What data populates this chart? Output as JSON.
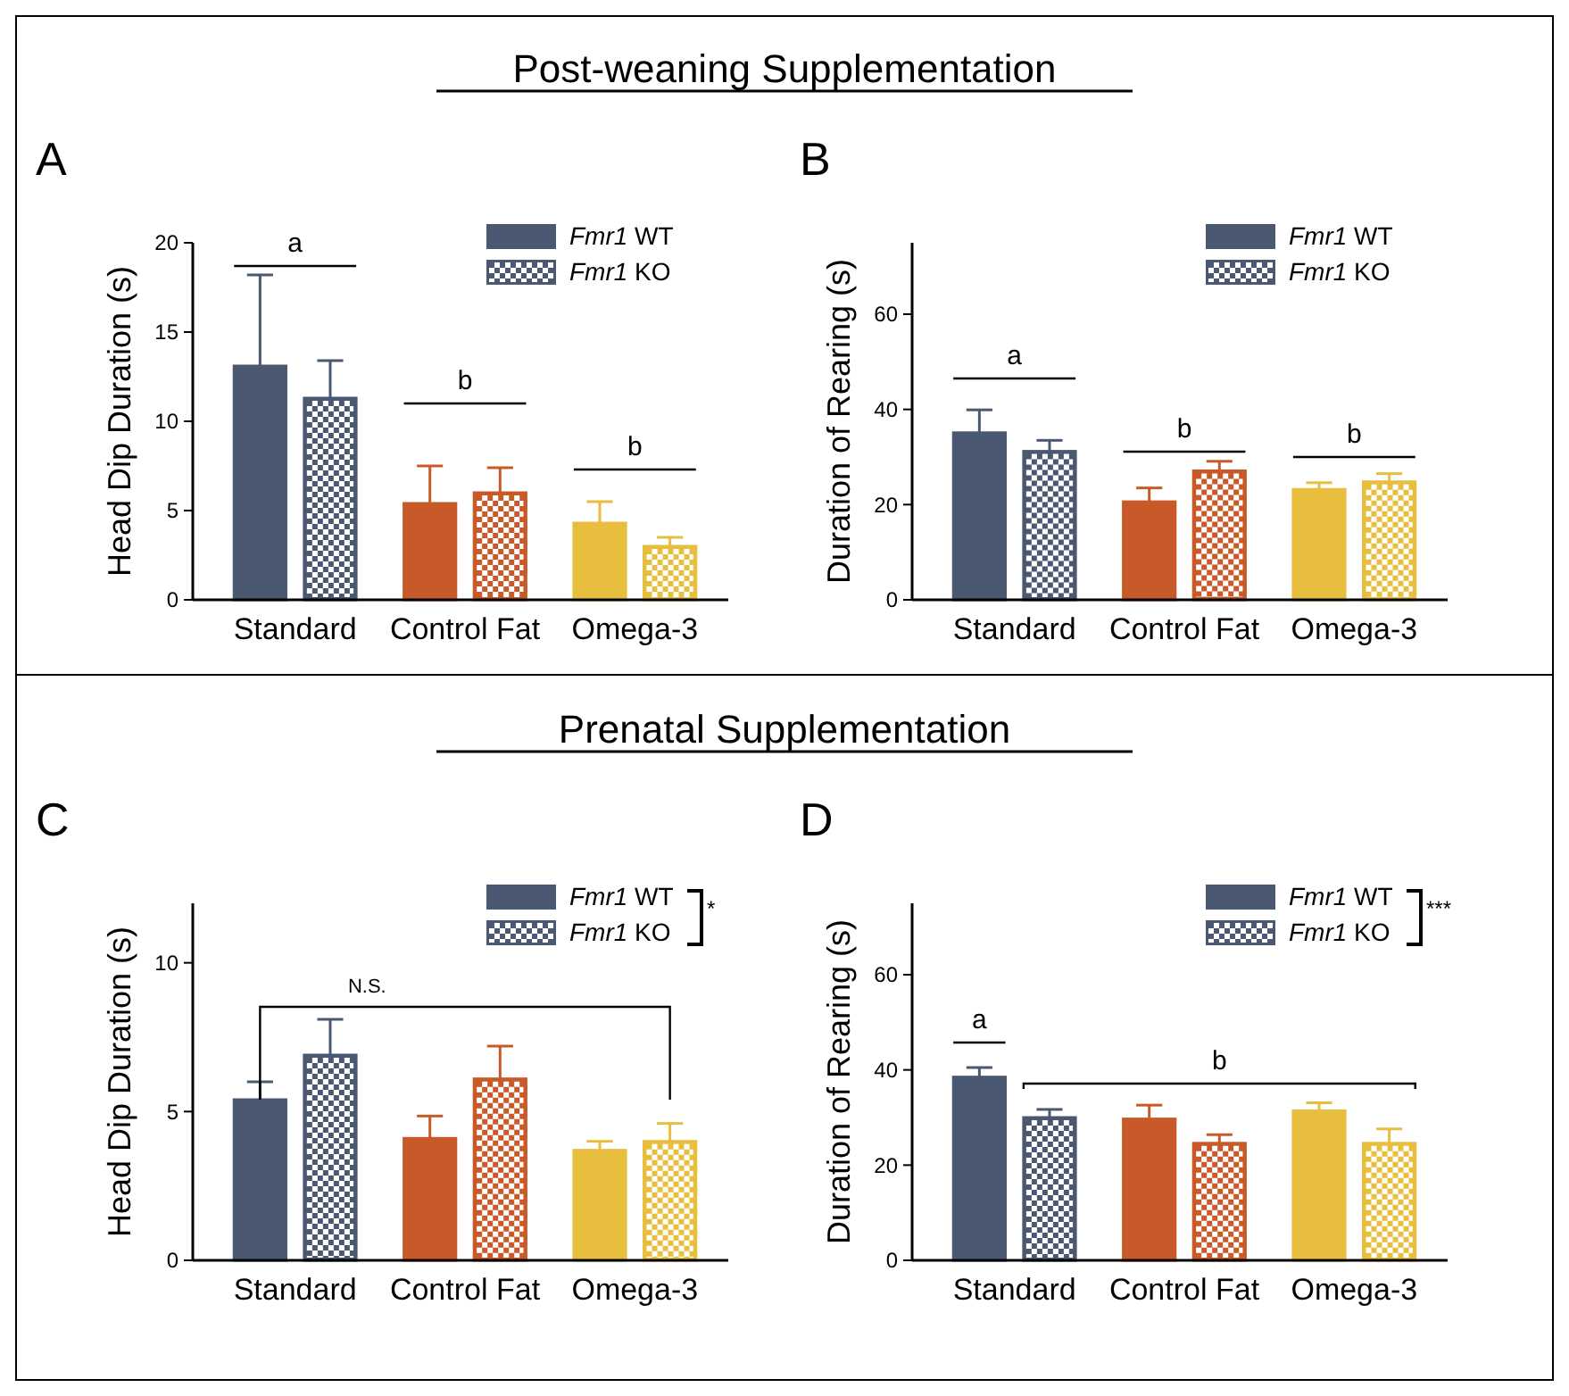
{
  "chart_data": [
    {
      "type": "bar",
      "title": "Post-weaning Supplementation",
      "subtitle": "A",
      "ylabel": "Head Dip Duration (s)",
      "categories": [
        "Standard",
        "Control Fat",
        "Omega-3"
      ],
      "ylim": [
        0,
        20
      ],
      "yticks": [
        0,
        5,
        10,
        15,
        20
      ],
      "legend": "top right",
      "series": [
        {
          "name": "Fmr1 WT",
          "color": "#4a5872",
          "colors": [
            "#4a5872",
            "#c85a2a",
            "#e8be3e"
          ],
          "values": [
            13.1,
            5.4,
            4.3
          ],
          "errors": [
            [
              13.1,
              18.2
            ],
            [
              5.4,
              7.5
            ],
            [
              4.3,
              5.5
            ]
          ]
        },
        {
          "name": "Fmr1 KO",
          "color": "#4a5872",
          "colors": [
            "#4a5872",
            "#c85a2a",
            "#e8be3e"
          ],
          "values": [
            11.3,
            6.0,
            3.0
          ],
          "errors": [
            [
              11.3,
              13.4
            ],
            [
              6.0,
              7.4
            ],
            [
              3.0,
              3.5
            ]
          ]
        }
      ],
      "annotations": [
        "a",
        "b",
        "b"
      ]
    },
    {
      "type": "bar",
      "subtitle": "B",
      "ylabel": "Duration of Rearing (s)",
      "categories": [
        "Standard",
        "Control Fat",
        "Omega-3"
      ],
      "ylim": [
        0,
        75
      ],
      "yticks": [
        0,
        20,
        40,
        60
      ],
      "legend": "top right",
      "series": [
        {
          "name": "Fmr1 WT",
          "color": "#4a5872",
          "colors": [
            "#4a5872",
            "#c85a2a",
            "#e8be3e"
          ],
          "values": [
            35.1,
            20.6,
            23.2
          ],
          "errors": [
            [
              35.1,
              39.9
            ],
            [
              20.6,
              23.5
            ],
            [
              23.2,
              24.6
            ]
          ]
        },
        {
          "name": "Fmr1 KO",
          "color": "#4a5872",
          "colors": [
            "#4a5872",
            "#c85a2a",
            "#e8be3e"
          ],
          "values": [
            31.2,
            27.1,
            24.8
          ],
          "errors": [
            [
              31.2,
              33.5
            ],
            [
              27.1,
              29.1
            ],
            [
              24.8,
              26.5
            ]
          ]
        }
      ],
      "annotations": [
        "a",
        "b",
        "b"
      ]
    },
    {
      "type": "bar",
      "title": "Prenatal Supplementation",
      "subtitle": "C",
      "ylabel": "Head Dip Duration (s)",
      "categories": [
        "Standard",
        "Control Fat",
        "Omega-3"
      ],
      "ylim": [
        0,
        12
      ],
      "yticks": [
        0,
        5,
        10
      ],
      "legend": "top right",
      "series": [
        {
          "name": "Fmr1 WT",
          "color": "#4a5872",
          "colors": [
            "#4a5872",
            "#c85a2a",
            "#e8be3e"
          ],
          "values": [
            5.4,
            4.1,
            3.7
          ],
          "errors": [
            [
              5.4,
              6.0
            ],
            [
              4.1,
              4.85
            ],
            [
              3.7,
              4.0
            ]
          ]
        },
        {
          "name": "Fmr1 KO",
          "color": "#4a5872",
          "colors": [
            "#4a5872",
            "#c85a2a",
            "#e8be3e"
          ],
          "values": [
            6.9,
            6.1,
            4.0
          ],
          "errors": [
            [
              6.9,
              8.1
            ],
            [
              6.1,
              7.2
            ],
            [
              4.0,
              4.6
            ]
          ]
        }
      ],
      "annotations": [
        "N.S.",
        "*"
      ]
    },
    {
      "type": "bar",
      "subtitle": "D",
      "ylabel": "Duration of Rearing (s)",
      "categories": [
        "Standard",
        "Control Fat",
        "Omega-3"
      ],
      "ylim": [
        0,
        75
      ],
      "yticks": [
        0,
        20,
        40,
        60
      ],
      "legend": "top right",
      "series": [
        {
          "name": "Fmr1 WT",
          "color": "#4a5872",
          "colors": [
            "#4a5872",
            "#c85a2a",
            "#e8be3e"
          ],
          "values": [
            38.5,
            29.7,
            31.4
          ],
          "errors": [
            [
              38.5,
              40.5
            ],
            [
              29.7,
              32.6
            ],
            [
              31.4,
              33.1
            ]
          ]
        },
        {
          "name": "Fmr1 KO",
          "color": "#4a5872",
          "colors": [
            "#4a5872",
            "#c85a2a",
            "#e8be3e"
          ],
          "values": [
            30.0,
            24.6,
            24.6
          ],
          "errors": [
            [
              30.0,
              31.7
            ],
            [
              24.6,
              26.4
            ],
            [
              24.6,
              27.6
            ]
          ]
        }
      ],
      "annotations": [
        "a",
        "b",
        "***"
      ]
    }
  ]
}
